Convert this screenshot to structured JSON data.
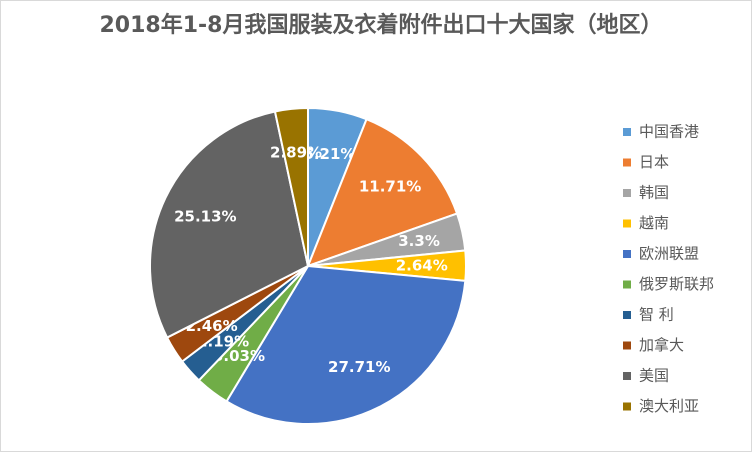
{
  "chart_data": {
    "type": "pie",
    "title": "2018年1-8月我国服装及衣着附件出口十大国家（地区）",
    "categories": [
      "中国香港",
      "日本",
      "韩国",
      "越南",
      "欧洲联盟",
      "俄罗斯联邦",
      "智 利",
      "加拿大",
      "美国",
      "澳大利亚"
    ],
    "values": [
      5.21,
      11.71,
      3.3,
      2.64,
      27.71,
      3.03,
      2.19,
      2.46,
      25.13,
      2.89
    ],
    "value_labels": [
      "5.21%",
      "11.71%",
      "3.3%",
      "2.64%",
      "27.71%",
      "3.03%",
      "2.19%",
      "2.46%",
      "25.13%",
      "2.89%"
    ],
    "colors": [
      "#5b9bd5",
      "#ed7d31",
      "#a5a5a5",
      "#ffc000",
      "#4472c4",
      "#70ad47",
      "#255e91",
      "#9e480e",
      "#636363",
      "#997300"
    ],
    "legend": "right"
  }
}
